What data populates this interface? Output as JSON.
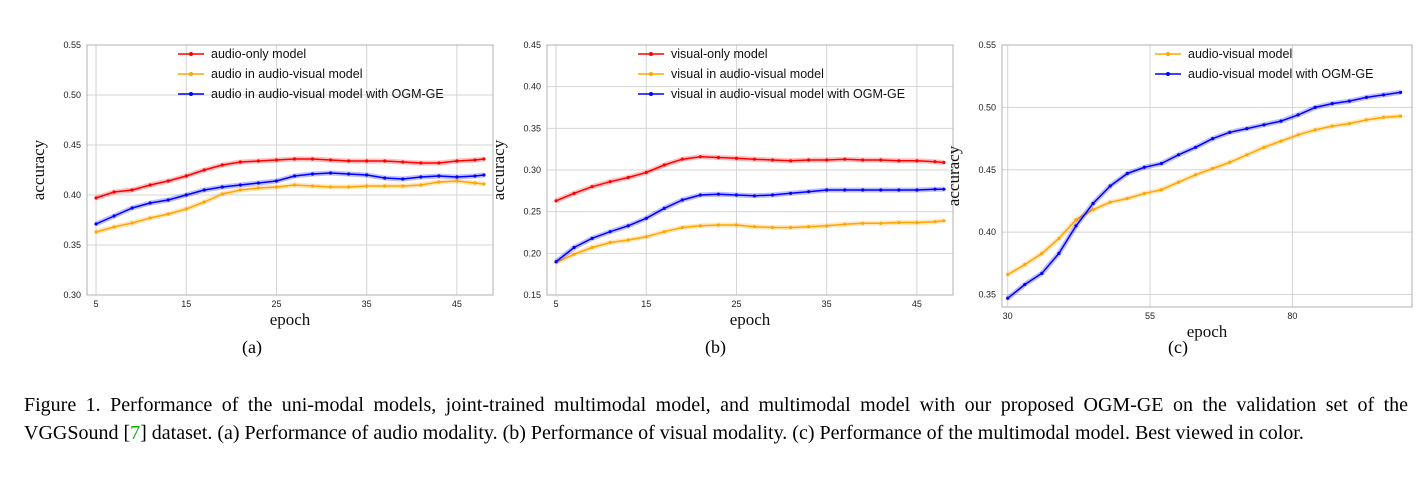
{
  "colors": {
    "red": "#ff0000",
    "orange": "#ffa500",
    "blue": "#0000ff",
    "grid": "#d4d4d4",
    "axis": "#b0b0b0"
  },
  "sublabels": [
    "(a)",
    "(b)",
    "(c)"
  ],
  "caption": {
    "before_ref": "Figure 1. Performance of the uni-modal models, joint-trained multimodal model, and multimodal model with our proposed OGM-GE on the validation set of the VGGSound [",
    "ref": "7",
    "after_ref": "] dataset. (a) Performance of audio modality. (b) Performance of visual modality. (c) Performance of the multimodal model. Best viewed in color."
  },
  "chart_data": [
    {
      "type": "line",
      "xlabel": "epoch",
      "ylabel": "accuracy",
      "xlim": [
        4,
        49
      ],
      "ylim": [
        0.3,
        0.55
      ],
      "xticks": [
        5,
        15,
        25,
        35,
        45
      ],
      "yticks": [
        0.3,
        0.35,
        0.4,
        0.45,
        0.5,
        0.55
      ],
      "grid": true,
      "legend_position": "top-center",
      "series": [
        {
          "name": "audio-only model",
          "color": "#ff0000",
          "points": [
            [
              5,
              0.397
            ],
            [
              7,
              0.403
            ],
            [
              9,
              0.405
            ],
            [
              11,
              0.41
            ],
            [
              13,
              0.414
            ],
            [
              15,
              0.419
            ],
            [
              17,
              0.425
            ],
            [
              19,
              0.43
            ],
            [
              21,
              0.433
            ],
            [
              23,
              0.434
            ],
            [
              25,
              0.435
            ],
            [
              27,
              0.436
            ],
            [
              29,
              0.436
            ],
            [
              31,
              0.435
            ],
            [
              33,
              0.434
            ],
            [
              35,
              0.434
            ],
            [
              37,
              0.434
            ],
            [
              39,
              0.433
            ],
            [
              41,
              0.432
            ],
            [
              43,
              0.432
            ],
            [
              45,
              0.434
            ],
            [
              47,
              0.435
            ],
            [
              48,
              0.436
            ]
          ]
        },
        {
          "name": "audio in audio-visual model",
          "color": "#ffa500",
          "points": [
            [
              5,
              0.363
            ],
            [
              7,
              0.368
            ],
            [
              9,
              0.372
            ],
            [
              11,
              0.377
            ],
            [
              13,
              0.381
            ],
            [
              15,
              0.386
            ],
            [
              17,
              0.393
            ],
            [
              19,
              0.401
            ],
            [
              21,
              0.405
            ],
            [
              23,
              0.407
            ],
            [
              25,
              0.408
            ],
            [
              27,
              0.41
            ],
            [
              29,
              0.409
            ],
            [
              31,
              0.408
            ],
            [
              33,
              0.408
            ],
            [
              35,
              0.409
            ],
            [
              37,
              0.409
            ],
            [
              39,
              0.409
            ],
            [
              41,
              0.41
            ],
            [
              43,
              0.413
            ],
            [
              45,
              0.414
            ],
            [
              47,
              0.412
            ],
            [
              48,
              0.411
            ]
          ]
        },
        {
          "name": "audio in audio-visual model with OGM-GE",
          "color": "#0000ff",
          "points": [
            [
              5,
              0.371
            ],
            [
              7,
              0.379
            ],
            [
              9,
              0.387
            ],
            [
              11,
              0.392
            ],
            [
              13,
              0.395
            ],
            [
              15,
              0.4
            ],
            [
              17,
              0.405
            ],
            [
              19,
              0.408
            ],
            [
              21,
              0.41
            ],
            [
              23,
              0.412
            ],
            [
              25,
              0.414
            ],
            [
              27,
              0.419
            ],
            [
              29,
              0.421
            ],
            [
              31,
              0.422
            ],
            [
              33,
              0.421
            ],
            [
              35,
              0.42
            ],
            [
              37,
              0.417
            ],
            [
              39,
              0.416
            ],
            [
              41,
              0.418
            ],
            [
              43,
              0.419
            ],
            [
              45,
              0.418
            ],
            [
              47,
              0.419
            ],
            [
              48,
              0.42
            ]
          ]
        }
      ]
    },
    {
      "type": "line",
      "xlabel": "epoch",
      "ylabel": "accuracy",
      "xlim": [
        4,
        49
      ],
      "ylim": [
        0.15,
        0.45
      ],
      "xticks": [
        5,
        15,
        25,
        35,
        45
      ],
      "yticks": [
        0.15,
        0.2,
        0.25,
        0.3,
        0.35,
        0.4,
        0.45
      ],
      "grid": true,
      "legend_position": "top-right",
      "series": [
        {
          "name": "visual-only model",
          "color": "#ff0000",
          "points": [
            [
              5,
              0.263
            ],
            [
              7,
              0.272
            ],
            [
              9,
              0.28
            ],
            [
              11,
              0.286
            ],
            [
              13,
              0.291
            ],
            [
              15,
              0.297
            ],
            [
              17,
              0.306
            ],
            [
              19,
              0.313
            ],
            [
              21,
              0.316
            ],
            [
              23,
              0.315
            ],
            [
              25,
              0.314
            ],
            [
              27,
              0.313
            ],
            [
              29,
              0.312
            ],
            [
              31,
              0.311
            ],
            [
              33,
              0.312
            ],
            [
              35,
              0.312
            ],
            [
              37,
              0.313
            ],
            [
              39,
              0.312
            ],
            [
              41,
              0.312
            ],
            [
              43,
              0.311
            ],
            [
              45,
              0.311
            ],
            [
              47,
              0.31
            ],
            [
              48,
              0.309
            ]
          ]
        },
        {
          "name": "visual in audio-visual model",
          "color": "#ffa500",
          "points": [
            [
              5,
              0.189
            ],
            [
              7,
              0.199
            ],
            [
              9,
              0.207
            ],
            [
              11,
              0.213
            ],
            [
              13,
              0.216
            ],
            [
              15,
              0.22
            ],
            [
              17,
              0.226
            ],
            [
              19,
              0.231
            ],
            [
              21,
              0.233
            ],
            [
              23,
              0.234
            ],
            [
              25,
              0.234
            ],
            [
              27,
              0.232
            ],
            [
              29,
              0.231
            ],
            [
              31,
              0.231
            ],
            [
              33,
              0.232
            ],
            [
              35,
              0.233
            ],
            [
              37,
              0.235
            ],
            [
              39,
              0.236
            ],
            [
              41,
              0.236
            ],
            [
              43,
              0.237
            ],
            [
              45,
              0.237
            ],
            [
              47,
              0.238
            ],
            [
              48,
              0.239
            ]
          ]
        },
        {
          "name": "visual in audio-visual model with OGM-GE",
          "color": "#0000ff",
          "points": [
            [
              5,
              0.19
            ],
            [
              7,
              0.207
            ],
            [
              9,
              0.218
            ],
            [
              11,
              0.226
            ],
            [
              13,
              0.233
            ],
            [
              15,
              0.242
            ],
            [
              17,
              0.254
            ],
            [
              19,
              0.264
            ],
            [
              21,
              0.27
            ],
            [
              23,
              0.271
            ],
            [
              25,
              0.27
            ],
            [
              27,
              0.269
            ],
            [
              29,
              0.27
            ],
            [
              31,
              0.272
            ],
            [
              33,
              0.274
            ],
            [
              35,
              0.276
            ],
            [
              37,
              0.276
            ],
            [
              39,
              0.276
            ],
            [
              41,
              0.276
            ],
            [
              43,
              0.276
            ],
            [
              45,
              0.276
            ],
            [
              47,
              0.277
            ],
            [
              48,
              0.277
            ]
          ]
        }
      ]
    },
    {
      "type": "line",
      "xlabel": "epoch",
      "ylabel": "accuracy",
      "xlim": [
        29,
        101
      ],
      "ylim": [
        0.34,
        0.55
      ],
      "xticks": [
        30,
        55,
        80
      ],
      "yticks": [
        0.35,
        0.4,
        0.45,
        0.5,
        0.55
      ],
      "grid": true,
      "legend_position": "top-right",
      "series": [
        {
          "name": "audio-visual model",
          "color": "#ffa500",
          "points": [
            [
              30,
              0.366
            ],
            [
              33,
              0.374
            ],
            [
              36,
              0.383
            ],
            [
              39,
              0.395
            ],
            [
              42,
              0.41
            ],
            [
              45,
              0.418
            ],
            [
              48,
              0.424
            ],
            [
              51,
              0.427
            ],
            [
              54,
              0.431
            ],
            [
              57,
              0.434
            ],
            [
              60,
              0.44
            ],
            [
              63,
              0.446
            ],
            [
              66,
              0.451
            ],
            [
              69,
              0.456
            ],
            [
              72,
              0.462
            ],
            [
              75,
              0.468
            ],
            [
              78,
              0.473
            ],
            [
              81,
              0.478
            ],
            [
              84,
              0.482
            ],
            [
              87,
              0.485
            ],
            [
              90,
              0.487
            ],
            [
              93,
              0.49
            ],
            [
              96,
              0.492
            ],
            [
              99,
              0.493
            ]
          ]
        },
        {
          "name": "audio-visual model with OGM-GE",
          "color": "#0000ff",
          "points": [
            [
              30,
              0.347
            ],
            [
              33,
              0.358
            ],
            [
              36,
              0.367
            ],
            [
              39,
              0.383
            ],
            [
              42,
              0.405
            ],
            [
              45,
              0.423
            ],
            [
              48,
              0.437
            ],
            [
              51,
              0.447
            ],
            [
              54,
              0.452
            ],
            [
              57,
              0.455
            ],
            [
              60,
              0.462
            ],
            [
              63,
              0.468
            ],
            [
              66,
              0.475
            ],
            [
              69,
              0.48
            ],
            [
              72,
              0.483
            ],
            [
              75,
              0.486
            ],
            [
              78,
              0.489
            ],
            [
              81,
              0.494
            ],
            [
              84,
              0.5
            ],
            [
              87,
              0.503
            ],
            [
              90,
              0.505
            ],
            [
              93,
              0.508
            ],
            [
              96,
              0.51
            ],
            [
              99,
              0.512
            ]
          ]
        }
      ]
    }
  ]
}
